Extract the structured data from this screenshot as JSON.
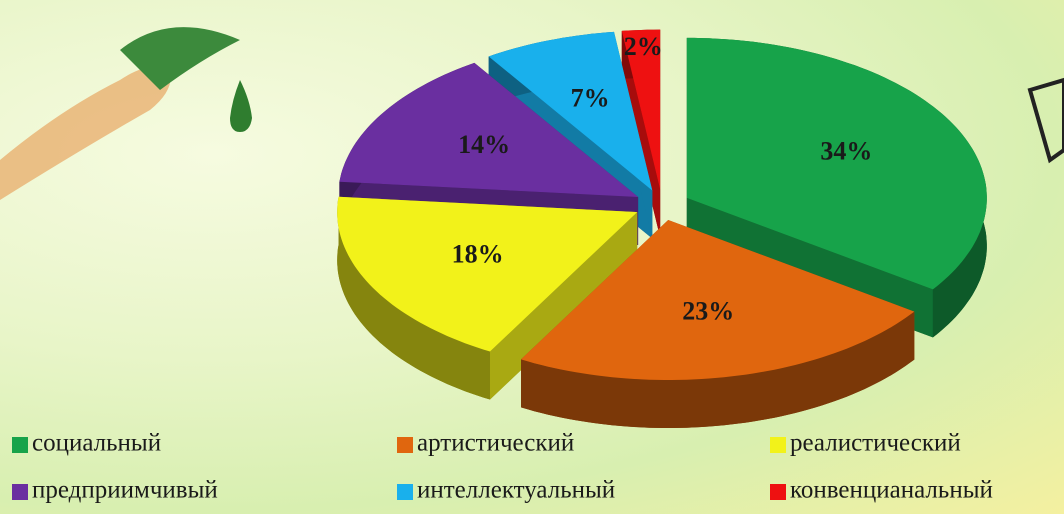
{
  "chart_data": {
    "type": "pie",
    "categories": [
      "социальный",
      "артистический",
      "реалистический",
      "предприимчивый",
      "интеллектуальный",
      "конвенцианальный"
    ],
    "values": [
      34,
      23,
      18,
      14,
      7,
      2
    ],
    "value_labels": [
      "34%",
      "23%",
      "18%",
      "14%",
      "7%",
      "2%"
    ],
    "colors": [
      "#17a34a",
      "#e0660e",
      "#f2f21a",
      "#6a2fa0",
      "#19b0ec",
      "#ee1111"
    ],
    "legend": "bottom"
  }
}
